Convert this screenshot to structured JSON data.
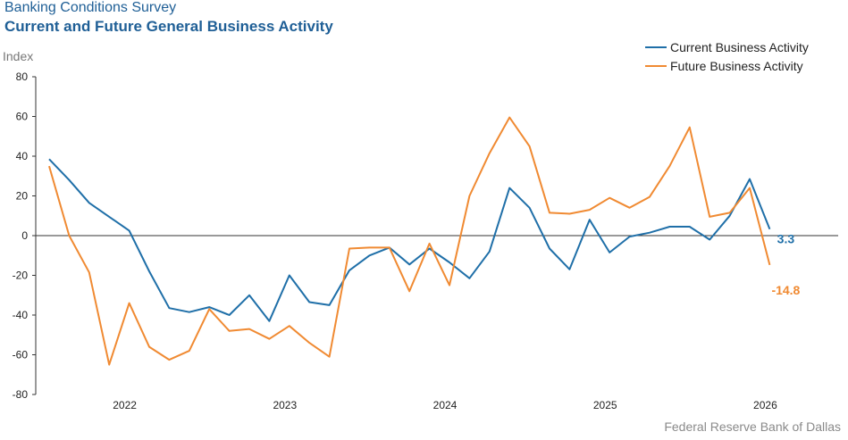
{
  "header": {
    "survey": "Banking Conditions Survey",
    "title": "Current and Future General Business Activity",
    "source": "Federal Reserve Bank of Dallas"
  },
  "colors": {
    "current": "#1f6fa8",
    "future": "#f08a32"
  },
  "chart_data": {
    "type": "line",
    "ylabel": "Index",
    "ylim": [
      -80,
      80
    ],
    "yticks": [
      80,
      60,
      40,
      20,
      0,
      -20,
      -40,
      -60,
      -80
    ],
    "x_ticks": [
      "2022",
      "2023",
      "2024",
      "2025",
      "2026"
    ],
    "x_tick_index": [
      4,
      12,
      20,
      28,
      36
    ],
    "legend_position": "top-right",
    "series": [
      {
        "name": "Current Business Activity",
        "values": [
          38.5,
          28,
          16.5,
          9.5,
          2.5,
          -18,
          -36.5,
          -38.5,
          -36,
          -40,
          -30,
          -43,
          -20,
          -33.5,
          -35,
          -17.5,
          -10,
          -6,
          -14.5,
          -6.5,
          -13.5,
          -21.5,
          -8,
          24,
          14,
          -6.5,
          -17,
          8,
          -8.5,
          -0.5,
          1.5,
          4.5,
          4.5,
          -2,
          10,
          28.5,
          3.3
        ],
        "end_label": "3.3"
      },
      {
        "name": "Future Business Activity",
        "values": [
          35,
          0,
          -18.5,
          -65,
          -34,
          -56,
          -62.5,
          -58,
          -37,
          -48,
          -47,
          -52,
          -45.5,
          -54,
          -61,
          -6.5,
          -6,
          -6,
          -28,
          -4,
          -25,
          20,
          41.5,
          59.5,
          45,
          11.5,
          11,
          13,
          19,
          14,
          19.5,
          35,
          54.5,
          9.5,
          11.5,
          24,
          -14.8
        ],
        "end_label": "-14.8"
      }
    ]
  }
}
